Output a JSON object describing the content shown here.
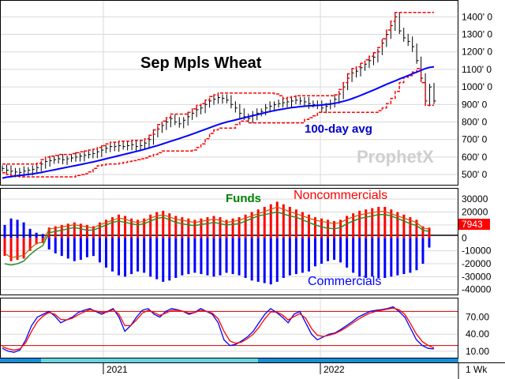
{
  "chart_data": [
    {
      "type": "ohlc",
      "title": "Sep Mpls Wheat",
      "annotation": "100-day avg",
      "watermark": "ProphetX",
      "y_ticks": [
        "1400' 0",
        "1300' 0",
        "1200' 0",
        "1100' 0",
        "1000' 0",
        "900' 0",
        "800' 0",
        "700' 0",
        "600' 0",
        "500' 0"
      ],
      "ylim": [
        460,
        1460
      ],
      "price_close": [
        535,
        525,
        520,
        515,
        512,
        520,
        525,
        530,
        540,
        560,
        575,
        580,
        585,
        590,
        585,
        590,
        595,
        600,
        605,
        610,
        615,
        620,
        630,
        640,
        650,
        660,
        660,
        665,
        660,
        665,
        670,
        660,
        665,
        680,
        700,
        730,
        760,
        780,
        800,
        820,
        800,
        790,
        810,
        830,
        850,
        870,
        880,
        900,
        920,
        930,
        940,
        935,
        925,
        900,
        880,
        850,
        830,
        820,
        840,
        850,
        860,
        880,
        890,
        900,
        905,
        910,
        915,
        920,
        925,
        920,
        915,
        905,
        900,
        895,
        880,
        890,
        905,
        930,
        960,
        1000,
        1050,
        1080,
        1090,
        1110,
        1130,
        1150,
        1170,
        1200,
        1250,
        1300,
        1350,
        1400,
        1320,
        1280,
        1260,
        1230,
        1150,
        1050,
        920,
        1000,
        920
      ],
      "ma_100": [
        480,
        485,
        488,
        492,
        495,
        498,
        501,
        504,
        508,
        512,
        517,
        522,
        527,
        532,
        537,
        542,
        547,
        552,
        557,
        562,
        567,
        572,
        578,
        584,
        590,
        596,
        602,
        608,
        614,
        620,
        626,
        632,
        638,
        645,
        652,
        659,
        666,
        674,
        682,
        690,
        698,
        706,
        714,
        722,
        731,
        740,
        749,
        758,
        767,
        776,
        785,
        793,
        800,
        806,
        812,
        818,
        824,
        830,
        836,
        842,
        848,
        854,
        860,
        865,
        870,
        874,
        878,
        882,
        885,
        888,
        890,
        892,
        893,
        895,
        897,
        900,
        903,
        907,
        912,
        918,
        925,
        933,
        942,
        952,
        962,
        972,
        982,
        993,
        1004,
        1015,
        1025,
        1035,
        1045,
        1055,
        1065,
        1075,
        1085,
        1095,
        1105,
        1112,
        1115
      ],
      "series": [
        {
          "name": "",
          "color": "#0000ff"
        },
        {
          "name": "",
          "color": "#ff0000"
        }
      ]
    },
    {
      "type": "bar",
      "labels": [
        "Funds",
        "Noncommercials",
        "Commercials"
      ],
      "label_colors": [
        "#008000",
        "#ff0000",
        "#0000ff"
      ],
      "y_ticks": [
        "30000",
        "20000",
        "10000",
        "0",
        "-10000",
        "-20000",
        "-30000",
        "-40000"
      ],
      "ylim": [
        -42000,
        35000
      ],
      "last_value_label": "7943",
      "noncommercials": [
        -14000,
        -18000,
        -17000,
        -16000,
        -10000,
        -5000,
        -4000,
        8000,
        9000,
        10000,
        11000,
        12000,
        11000,
        10000,
        9000,
        12000,
        14000,
        16000,
        18000,
        17000,
        15000,
        14000,
        15000,
        18000,
        20000,
        21000,
        19000,
        17000,
        16000,
        15000,
        14000,
        15000,
        16000,
        17000,
        16000,
        14000,
        15000,
        16000,
        18000,
        20000,
        22000,
        24000,
        26000,
        28000,
        26000,
        24000,
        22000,
        20000,
        18000,
        16000,
        15000,
        14000,
        13000,
        14000,
        17000,
        19000,
        21000,
        22000,
        23000,
        24000,
        24000,
        22000,
        20000,
        18000,
        16000,
        14000,
        9000,
        7943
      ],
      "commercials": [
        10000,
        15000,
        14000,
        12000,
        7000,
        4000,
        3000,
        -9000,
        -12000,
        -14000,
        -16000,
        -18000,
        -17000,
        -15000,
        -14000,
        -19000,
        -23000,
        -26000,
        -29000,
        -30000,
        -28000,
        -26000,
        -27000,
        -30000,
        -32000,
        -34000,
        -33000,
        -31000,
        -29000,
        -28000,
        -27000,
        -28000,
        -29000,
        -30000,
        -29000,
        -27000,
        -28000,
        -29000,
        -31000,
        -33000,
        -34000,
        -35000,
        -36000,
        -34000,
        -31000,
        -29000,
        -28000,
        -27000,
        -26000,
        -22000,
        -20000,
        -18000,
        -17000,
        -19000,
        -23000,
        -27000,
        -30000,
        -31000,
        -30000,
        -31000,
        -31000,
        -30000,
        -29000,
        -28000,
        -27000,
        -25000,
        -20000,
        -7500
      ],
      "funds_line": [
        -20000,
        -21000,
        -20000,
        -18000,
        -13000,
        -9000,
        -6000,
        4000,
        5000,
        6000,
        7000,
        8000,
        7000,
        6000,
        6000,
        8000,
        10000,
        12000,
        13000,
        12000,
        11000,
        10000,
        11000,
        13000,
        15000,
        16000,
        14000,
        12000,
        11000,
        10000,
        9500,
        10500,
        11000,
        12000,
        11000,
        10000,
        10500,
        11000,
        13000,
        15000,
        17000,
        18000,
        19000,
        20000,
        18500,
        17000,
        16000,
        14000,
        12000,
        10000,
        8500,
        7500,
        7000,
        8000,
        11000,
        13000,
        15000,
        16000,
        17000,
        18000,
        18000,
        17000,
        15000,
        13000,
        11000,
        9500,
        6000,
        5000
      ]
    },
    {
      "type": "line",
      "y_ticks": [
        "70.00",
        "40.00",
        "10.00"
      ],
      "ylim": [
        0,
        100
      ],
      "ref_lines": [
        80,
        20
      ],
      "k_line": [
        15,
        10,
        8,
        12,
        30,
        55,
        70,
        75,
        80,
        72,
        60,
        65,
        70,
        78,
        82,
        85,
        80,
        75,
        80,
        85,
        70,
        45,
        55,
        70,
        82,
        85,
        75,
        70,
        80,
        85,
        83,
        80,
        75,
        78,
        85,
        80,
        75,
        60,
        30,
        20,
        22,
        28,
        35,
        45,
        60,
        75,
        85,
        78,
        70,
        60,
        75,
        80,
        60,
        40,
        30,
        35,
        40,
        42,
        48,
        55,
        62,
        70,
        75,
        80,
        82,
        83,
        85,
        88,
        80,
        70,
        50,
        30,
        20,
        15,
        14
      ],
      "d_line": [
        18,
        14,
        12,
        14,
        25,
        45,
        62,
        72,
        78,
        75,
        66,
        65,
        68,
        74,
        79,
        83,
        81,
        78,
        79,
        83,
        75,
        55,
        55,
        65,
        77,
        82,
        78,
        73,
        77,
        82,
        82,
        80,
        77,
        78,
        82,
        80,
        77,
        67,
        45,
        28,
        24,
        26,
        32,
        40,
        52,
        67,
        79,
        79,
        74,
        65,
        71,
        76,
        68,
        50,
        38,
        36,
        38,
        41,
        46,
        52,
        59,
        66,
        72,
        77,
        80,
        82,
        84,
        86,
        83,
        75,
        58,
        40,
        27,
        20,
        16
      ]
    }
  ],
  "x_labels": [
    "2021",
    "2022"
  ],
  "period_label": "1 Wk",
  "colors": {
    "up": "#ff0000",
    "down": "#0000ff",
    "funds": "#008000",
    "bg": "#ffffff",
    "scrollbar": "#1a8cd8"
  }
}
